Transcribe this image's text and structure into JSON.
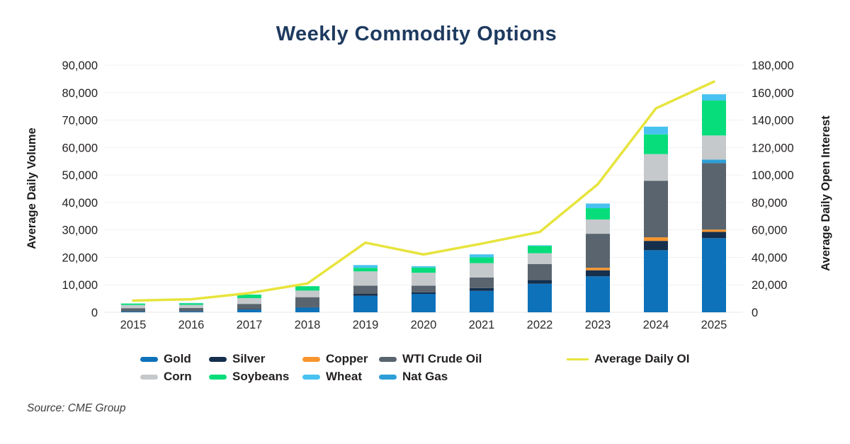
{
  "title": "Weekly Commodity Options",
  "source_note": "Source: CME Group",
  "left_axis": {
    "title": "Average Daily Volume",
    "min": 0,
    "max": 90000,
    "step": 10000,
    "ticks": [
      "0",
      "10,000",
      "20,000",
      "30,000",
      "40,000",
      "50,000",
      "60,000",
      "70,000",
      "80,000",
      "90,000"
    ]
  },
  "right_axis": {
    "title": "Average Daily Open Interest",
    "min": 0,
    "max": 180000,
    "step": 20000,
    "ticks": [
      "0",
      "20,000",
      "40,000",
      "60,000",
      "80,000",
      "100,000",
      "120,000",
      "140,000",
      "160,000",
      "180,000"
    ]
  },
  "chart_data": {
    "type": "bar",
    "stacked": true,
    "grid": "horizontal",
    "legend_position": "bottom",
    "categories": [
      "2015",
      "2016",
      "2017",
      "2018",
      "2019",
      "2020",
      "2021",
      "2022",
      "2023",
      "2024",
      "2025"
    ],
    "series": [
      {
        "name": "Gold",
        "color": "#0d72ba",
        "values": [
          250,
          300,
          1000,
          1700,
          6000,
          6700,
          7800,
          10400,
          13100,
          22600,
          27000
        ]
      },
      {
        "name": "Silver",
        "color": "#152f4d",
        "values": [
          100,
          100,
          150,
          150,
          700,
          600,
          1000,
          1400,
          2200,
          3400,
          2300
        ]
      },
      {
        "name": "Copper",
        "color": "#f8952d",
        "values": [
          0,
          0,
          0,
          0,
          0,
          0,
          0,
          0,
          900,
          1300,
          800
        ]
      },
      {
        "name": "WTI Crude Oil",
        "color": "#59646e",
        "values": [
          1150,
          1200,
          1900,
          3650,
          3000,
          2400,
          3900,
          5800,
          12400,
          20600,
          24200
        ]
      },
      {
        "name": "Nat Gas",
        "color": "#2d9fd8",
        "values": [
          0,
          0,
          0,
          0,
          0,
          0,
          0,
          0,
          0,
          0,
          1300
        ]
      },
      {
        "name": "Corn",
        "color": "#c5c9cc",
        "values": [
          1150,
          1100,
          2100,
          2400,
          5200,
          4700,
          5200,
          3900,
          5200,
          9700,
          8800
        ]
      },
      {
        "name": "Soybeans",
        "color": "#08dd7c",
        "values": [
          550,
          600,
          1300,
          1600,
          1300,
          1900,
          2100,
          2700,
          4100,
          7200,
          12700
        ]
      },
      {
        "name": "Wheat",
        "color": "#48c2f0",
        "values": [
          0,
          100,
          0,
          0,
          1000,
          500,
          1100,
          200,
          1700,
          2800,
          2300
        ]
      }
    ],
    "line_series": {
      "name": "Average Daily OI",
      "color": "#e7e43d",
      "axis": "right",
      "values": [
        8500,
        9500,
        14000,
        21000,
        50700,
        42100,
        50000,
        58500,
        93300,
        148500,
        168000
      ]
    },
    "totals_by_year": [
      3200,
      3400,
      6450,
      9500,
      17200,
      16800,
      21100,
      24400,
      39600,
      67600,
      79400
    ],
    "legend_rows": [
      [
        "Gold",
        "Silver",
        "Copper",
        "WTI Crude Oil",
        "Average Daily OI"
      ],
      [
        "Corn",
        "Soybeans",
        "Wheat",
        "Nat Gas"
      ]
    ]
  }
}
